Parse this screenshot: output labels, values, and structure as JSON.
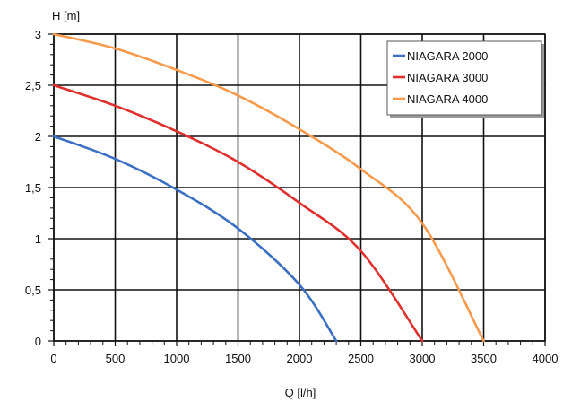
{
  "chart_data": {
    "type": "line",
    "xlabel": "Q [l/h]",
    "ylabel": "H [m]",
    "xlim": [
      0,
      4000
    ],
    "ylim": [
      0,
      3
    ],
    "x_ticks": [
      "0",
      "500",
      "1000",
      "1500",
      "2000",
      "2500",
      "3000",
      "3500",
      "4000"
    ],
    "y_ticks": [
      "0",
      "0,5",
      "1",
      "1,5",
      "2",
      "2,5",
      "3"
    ],
    "grid": true,
    "legend_position": "top-right",
    "series": [
      {
        "name": "NIAGARA 2000",
        "color": "#3a6fc4",
        "points": [
          [
            0,
            2.0
          ],
          [
            500,
            1.78
          ],
          [
            1000,
            1.48
          ],
          [
            1500,
            1.1
          ],
          [
            2000,
            0.55
          ],
          [
            2300,
            0.0
          ]
        ]
      },
      {
        "name": "NIAGARA 3000",
        "color": "#e0302e",
        "points": [
          [
            0,
            2.5
          ],
          [
            500,
            2.3
          ],
          [
            1000,
            2.05
          ],
          [
            1500,
            1.75
          ],
          [
            2000,
            1.35
          ],
          [
            2500,
            0.88
          ],
          [
            3000,
            0.0
          ]
        ]
      },
      {
        "name": "NIAGARA 4000",
        "color": "#f79a4c",
        "points": [
          [
            0,
            3.0
          ],
          [
            500,
            2.86
          ],
          [
            1000,
            2.65
          ],
          [
            1500,
            2.4
          ],
          [
            2000,
            2.07
          ],
          [
            2500,
            1.68
          ],
          [
            3000,
            1.15
          ],
          [
            3500,
            0.0
          ]
        ]
      }
    ]
  }
}
